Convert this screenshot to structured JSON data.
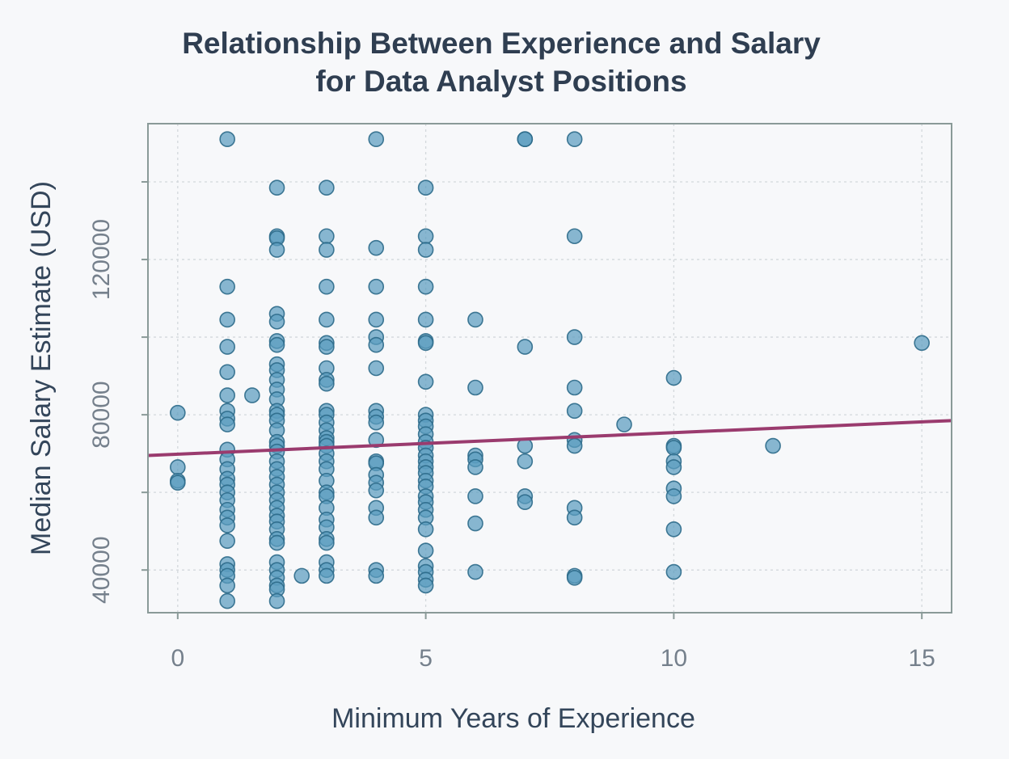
{
  "chart_data": {
    "type": "scatter",
    "title_lines": [
      "Relationship Between Experience and Salary",
      "for Data Analyst Positions"
    ],
    "xlabel": "Minimum Years of Experience",
    "ylabel": "Median Salary Estimate (USD)",
    "xlim": [
      -0.6,
      15.6
    ],
    "ylim": [
      29000,
      155000
    ],
    "xticks": [
      0,
      5,
      10,
      15
    ],
    "yticks": [
      40000,
      80000,
      120000
    ],
    "ytick_positions": [
      40000,
      60000,
      80000,
      100000,
      120000,
      140000
    ],
    "grid": true,
    "point_color": "#5b9dbf",
    "point_edge": "#2c6a8a",
    "trend_color": "#9a3b6e",
    "trend_line": {
      "x": [
        -0.6,
        15.6
      ],
      "y": [
        69500,
        78500
      ]
    },
    "points": [
      [
        0,
        80500
      ],
      [
        0,
        66500
      ],
      [
        0,
        63000
      ],
      [
        0,
        62500
      ],
      [
        1,
        151000
      ],
      [
        1,
        113000
      ],
      [
        1,
        104500
      ],
      [
        1,
        97500
      ],
      [
        1,
        91000
      ],
      [
        1,
        85000
      ],
      [
        1,
        81000
      ],
      [
        1,
        79000
      ],
      [
        1,
        77500
      ],
      [
        1,
        71000
      ],
      [
        1,
        68500
      ],
      [
        1,
        66000
      ],
      [
        1,
        63500
      ],
      [
        1,
        62000
      ],
      [
        1,
        60000
      ],
      [
        1,
        58000
      ],
      [
        1,
        55500
      ],
      [
        1,
        53500
      ],
      [
        1,
        51500
      ],
      [
        1,
        47500
      ],
      [
        1,
        41500
      ],
      [
        1,
        40000
      ],
      [
        1,
        38500
      ],
      [
        1,
        36000
      ],
      [
        1,
        32000
      ],
      [
        1.5,
        85000
      ],
      [
        2,
        138500
      ],
      [
        2,
        126000
      ],
      [
        2,
        125500
      ],
      [
        2,
        122500
      ],
      [
        2,
        106000
      ],
      [
        2,
        104000
      ],
      [
        2,
        99000
      ],
      [
        2,
        98000
      ],
      [
        2,
        93000
      ],
      [
        2,
        91500
      ],
      [
        2,
        89000
      ],
      [
        2,
        86500
      ],
      [
        2,
        84000
      ],
      [
        2,
        81000
      ],
      [
        2,
        80000
      ],
      [
        2,
        78500
      ],
      [
        2,
        76000
      ],
      [
        2,
        73000
      ],
      [
        2,
        72000
      ],
      [
        2,
        70500
      ],
      [
        2,
        68000
      ],
      [
        2,
        66000
      ],
      [
        2,
        64000
      ],
      [
        2,
        62000
      ],
      [
        2,
        60000
      ],
      [
        2,
        58000
      ],
      [
        2,
        56000
      ],
      [
        2,
        54000
      ],
      [
        2,
        52500
      ],
      [
        2,
        50500
      ],
      [
        2,
        48000
      ],
      [
        2,
        47000
      ],
      [
        2,
        42000
      ],
      [
        2,
        40000
      ],
      [
        2,
        38000
      ],
      [
        2,
        36000
      ],
      [
        2,
        35000
      ],
      [
        2,
        32000
      ],
      [
        2.5,
        38500
      ],
      [
        3,
        138500
      ],
      [
        3,
        126000
      ],
      [
        3,
        122500
      ],
      [
        3,
        113000
      ],
      [
        3,
        104500
      ],
      [
        3,
        98500
      ],
      [
        3,
        97500
      ],
      [
        3,
        92000
      ],
      [
        3,
        89000
      ],
      [
        3,
        88000
      ],
      [
        3,
        81000
      ],
      [
        3,
        80000
      ],
      [
        3,
        78000
      ],
      [
        3,
        76000
      ],
      [
        3,
        74000
      ],
      [
        3,
        73000
      ],
      [
        3,
        72000
      ],
      [
        3,
        70000
      ],
      [
        3,
        68000
      ],
      [
        3,
        66000
      ],
      [
        3,
        63000
      ],
      [
        3,
        60000
      ],
      [
        3,
        59000
      ],
      [
        3,
        56000
      ],
      [
        3,
        53000
      ],
      [
        3,
        51000
      ],
      [
        3,
        48000
      ],
      [
        3,
        47000
      ],
      [
        3,
        42000
      ],
      [
        3,
        40000
      ],
      [
        3,
        38500
      ],
      [
        4,
        151000
      ],
      [
        4,
        123000
      ],
      [
        4,
        113000
      ],
      [
        4,
        104500
      ],
      [
        4,
        100000
      ],
      [
        4,
        98000
      ],
      [
        4,
        92000
      ],
      [
        4,
        81000
      ],
      [
        4,
        79500
      ],
      [
        4,
        78000
      ],
      [
        4,
        73500
      ],
      [
        4,
        68000
      ],
      [
        4,
        67500
      ],
      [
        4,
        64500
      ],
      [
        4,
        62500
      ],
      [
        4,
        60500
      ],
      [
        4,
        56000
      ],
      [
        4,
        53500
      ],
      [
        4,
        40000
      ],
      [
        4,
        38500
      ],
      [
        5,
        138500
      ],
      [
        5,
        126000
      ],
      [
        5,
        122500
      ],
      [
        5,
        113000
      ],
      [
        5,
        104500
      ],
      [
        5,
        99000
      ],
      [
        5,
        98500
      ],
      [
        5,
        88500
      ],
      [
        5,
        80000
      ],
      [
        5,
        78500
      ],
      [
        5,
        77000
      ],
      [
        5,
        75000
      ],
      [
        5,
        73000
      ],
      [
        5,
        71500
      ],
      [
        5,
        69500
      ],
      [
        5,
        68000
      ],
      [
        5,
        66500
      ],
      [
        5,
        65000
      ],
      [
        5,
        63000
      ],
      [
        5,
        61500
      ],
      [
        5,
        59000
      ],
      [
        5,
        57500
      ],
      [
        5,
        55500
      ],
      [
        5,
        53500
      ],
      [
        5,
        50500
      ],
      [
        5,
        45000
      ],
      [
        5,
        41000
      ],
      [
        5,
        39500
      ],
      [
        5,
        37500
      ],
      [
        5,
        36000
      ],
      [
        6,
        104500
      ],
      [
        6,
        87000
      ],
      [
        6,
        69500
      ],
      [
        6,
        68500
      ],
      [
        6,
        66500
      ],
      [
        6,
        59000
      ],
      [
        6,
        52000
      ],
      [
        6,
        39500
      ],
      [
        7,
        151000
      ],
      [
        7,
        151000
      ],
      [
        7,
        97500
      ],
      [
        7,
        72000
      ],
      [
        7,
        68000
      ],
      [
        7,
        59000
      ],
      [
        7,
        57500
      ],
      [
        8,
        151000
      ],
      [
        8,
        126000
      ],
      [
        8,
        100000
      ],
      [
        8,
        87000
      ],
      [
        8,
        81000
      ],
      [
        8,
        73500
      ],
      [
        8,
        72000
      ],
      [
        8,
        56000
      ],
      [
        8,
        53500
      ],
      [
        8,
        38500
      ],
      [
        8,
        38000
      ],
      [
        9,
        77500
      ],
      [
        10,
        89500
      ],
      [
        10,
        72000
      ],
      [
        10,
        71500
      ],
      [
        10,
        68000
      ],
      [
        10,
        66500
      ],
      [
        10,
        61000
      ],
      [
        10,
        59000
      ],
      [
        10,
        50500
      ],
      [
        10,
        39500
      ],
      [
        12,
        72000
      ],
      [
        15,
        98500
      ]
    ]
  }
}
